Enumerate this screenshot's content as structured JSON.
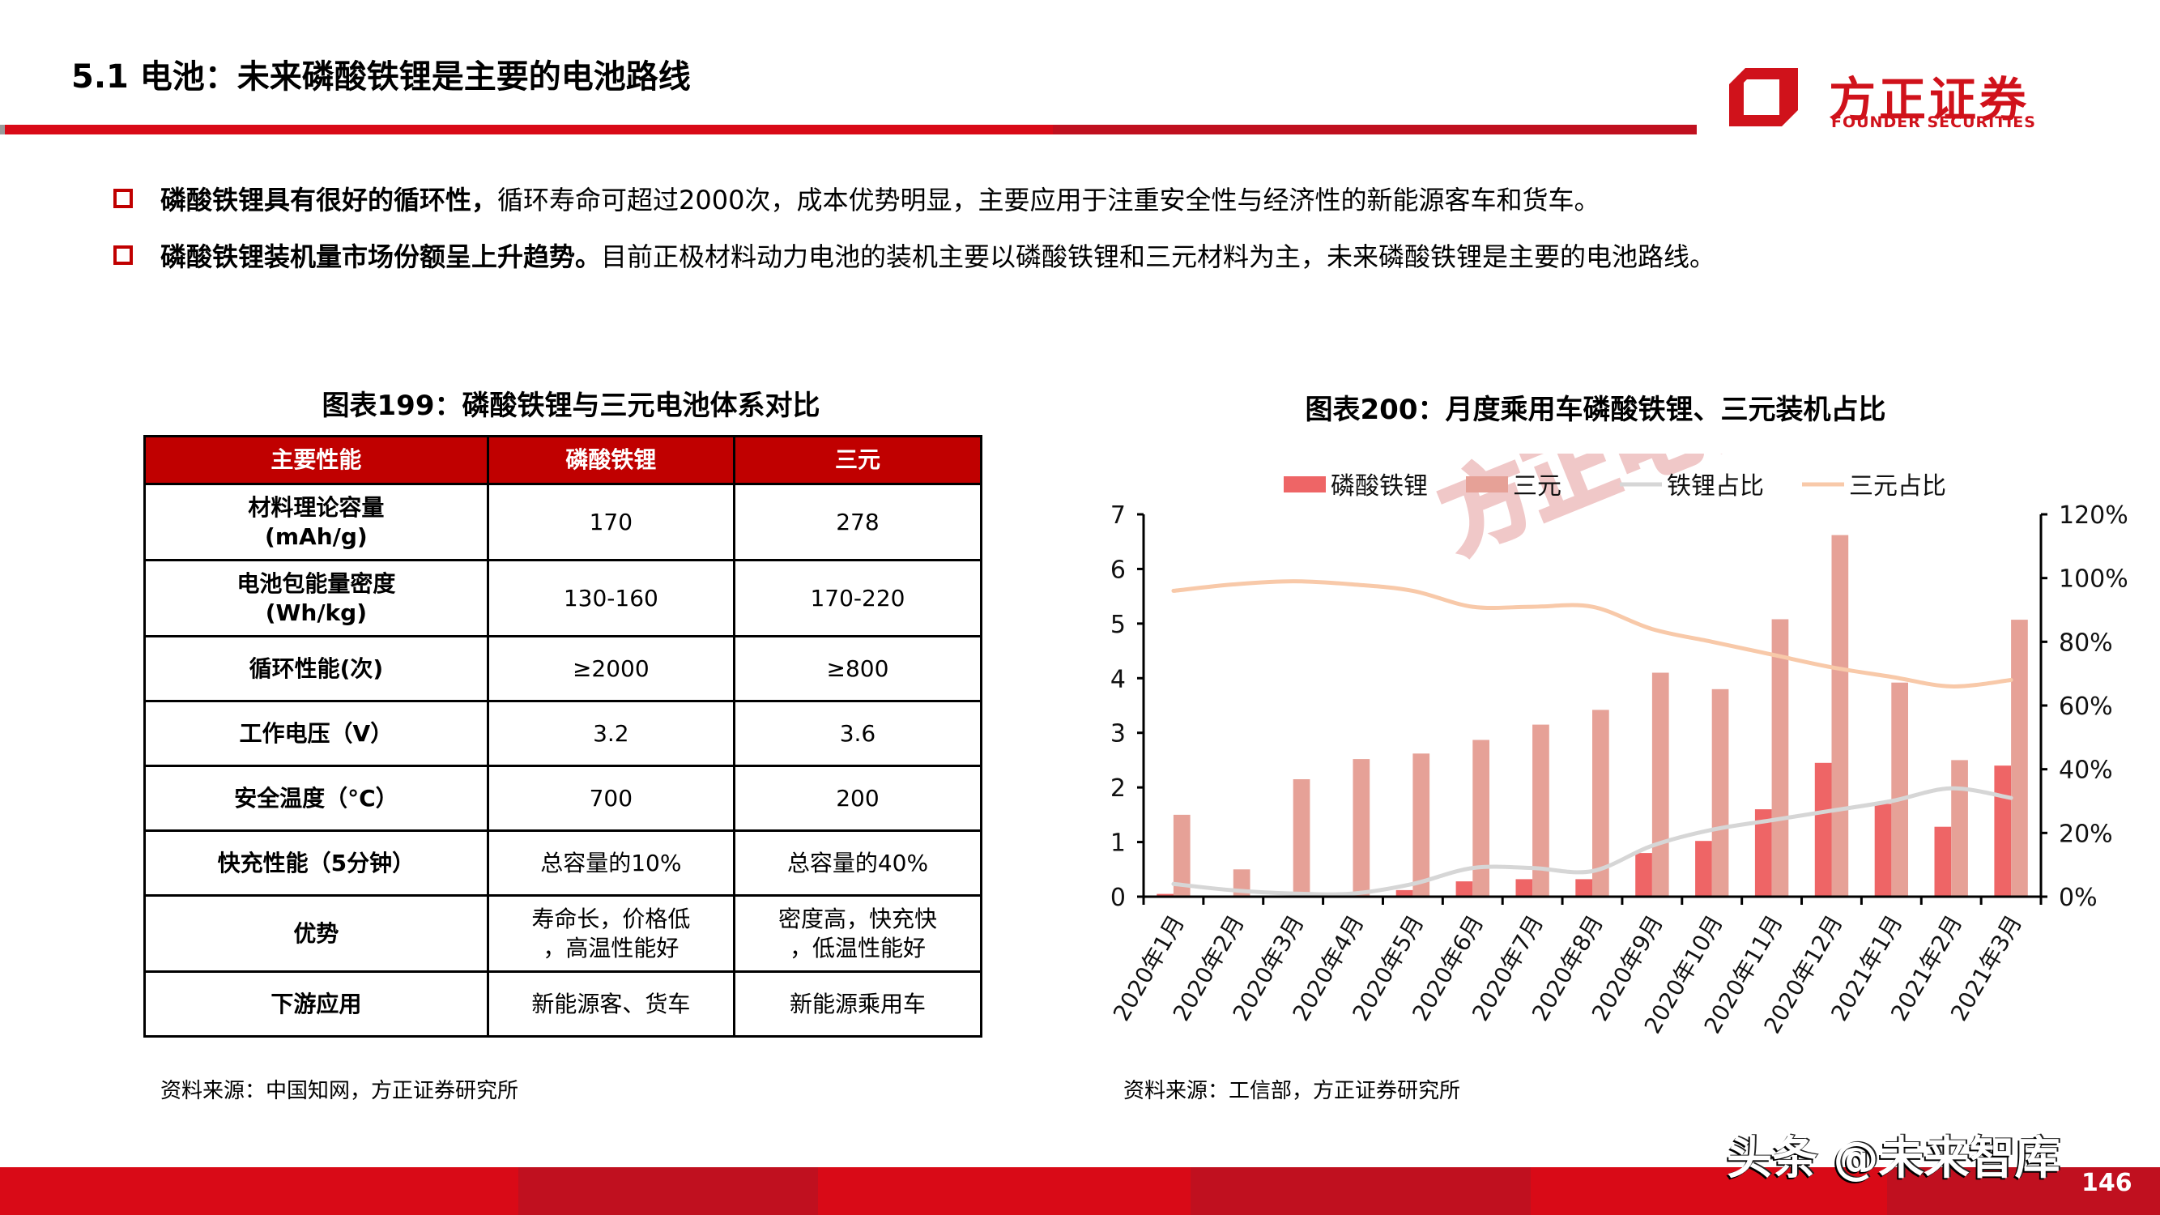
{
  "header": {
    "title": "5.1 电池：未来磷酸铁锂是主要的电池路线",
    "logo_cn": "方正证券",
    "logo_en": "FOUNDER SECURITIES"
  },
  "bullets": [
    {
      "bold": "磷酸铁锂具有很好的循环性，",
      "text": "循环寿命可超过2000次，成本优势明显，主要应用于注重安全性与经济性的新能源客车和货车。"
    },
    {
      "bold": "磷酸铁锂装机量市场份额呈上升趋势。",
      "text": "目前正极材料动力电池的装机主要以磷酸铁锂和三元材料为主，未来磷酸铁锂是主要的电池路线。"
    }
  ],
  "table": {
    "title": "图表199：磷酸铁锂与三元电池体系对比",
    "headers": [
      "主要性能",
      "磷酸铁锂",
      "三元"
    ],
    "rows": [
      {
        "label": "材料理论容量\n(mAh/g)",
        "lfp": "170",
        "ncm": "278"
      },
      {
        "label": "电池包能量密度\n(Wh/kg)",
        "lfp": "130-160",
        "ncm": "170-220"
      },
      {
        "label": "循环性能(次)",
        "lfp": "≥2000",
        "ncm": "≥800"
      },
      {
        "label": "工作电压（V）",
        "lfp": "3.2",
        "ncm": "3.6"
      },
      {
        "label": "安全温度（°C）",
        "lfp": "700",
        "ncm": "200"
      },
      {
        "label": "快充性能（5分钟）",
        "lfp": "总容量的10%",
        "ncm": "总容量的40%"
      },
      {
        "label": "优势",
        "lfp": "寿命长，价格低\n，高温性能好",
        "ncm": "密度高，快充快\n，低温性能好"
      },
      {
        "label": "下游应用",
        "lfp": "新能源客、货车",
        "ncm": "新能源乘用车"
      }
    ],
    "source": "资料来源：中国知网，方正证券研究所"
  },
  "chart_data": {
    "type": "bar",
    "title": "图表200：月度乘用车磷酸铁锂、三元装机占比",
    "watermark": "方正电新",
    "categories": [
      "2020年1月",
      "2020年2月",
      "2020年3月",
      "2020年4月",
      "2020年5月",
      "2020年6月",
      "2020年7月",
      "2020年8月",
      "2020年9月",
      "2020年10月",
      "2020年11月",
      "2020年12月",
      "2021年1月",
      "2021年2月",
      "2021年3月"
    ],
    "series": [
      {
        "name": "磷酸铁锂",
        "kind": "bar",
        "axis": "left",
        "color": "#ee6566",
        "values": [
          0.05,
          0.0,
          0.0,
          0.03,
          0.12,
          0.28,
          0.32,
          0.32,
          0.8,
          1.02,
          1.6,
          2.45,
          1.7,
          1.28,
          2.4
        ]
      },
      {
        "name": "三元",
        "kind": "bar",
        "axis": "left",
        "color": "#e6a197",
        "values": [
          1.5,
          0.5,
          2.15,
          2.52,
          2.62,
          2.87,
          3.15,
          3.42,
          4.1,
          3.8,
          5.08,
          6.62,
          3.92,
          2.5,
          5.07
        ]
      },
      {
        "name": "铁锂占比",
        "kind": "line",
        "axis": "right",
        "color": "#d6d6d6",
        "values": [
          4,
          2,
          1,
          1,
          4,
          9,
          9,
          8,
          16,
          21,
          24,
          27,
          30,
          34,
          31
        ]
      },
      {
        "name": "三元占比",
        "kind": "line",
        "axis": "right",
        "color": "#f8c9a9",
        "values": [
          96,
          98,
          99,
          98,
          96,
          91,
          91,
          91,
          84,
          80,
          76,
          72,
          69,
          66,
          68
        ]
      }
    ],
    "left_axis": {
      "ticks": [
        "0",
        "1",
        "2",
        "3",
        "4",
        "5",
        "6",
        "7"
      ],
      "range": [
        0,
        7
      ]
    },
    "right_axis": {
      "ticks": [
        "0%",
        "20%",
        "40%",
        "60%",
        "80%",
        "100%",
        "120%"
      ],
      "range": [
        0,
        120
      ]
    },
    "xlabel": "",
    "ylabel": "",
    "grid": false,
    "legend_position": "top",
    "source": "资料来源：工信部，方正证券研究所"
  },
  "footer": {
    "watermark": "头条 @未来智库",
    "page_number": "146"
  }
}
